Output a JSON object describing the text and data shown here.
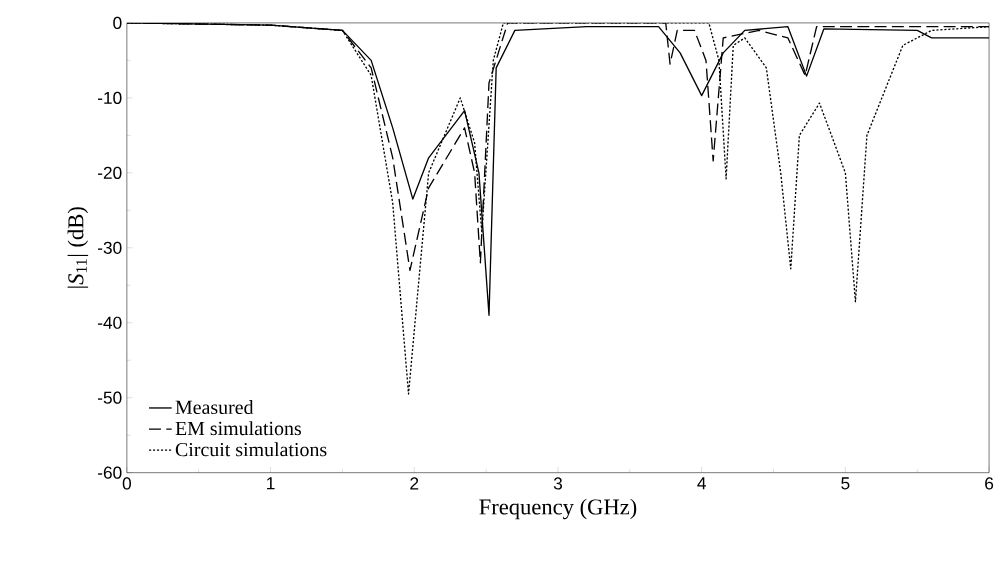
{
  "chart_data": {
    "type": "line",
    "xlabel": "Frequency (GHz)",
    "ylabel": "|*S*$_{11}$| (dB)",
    "xlim": [
      0,
      6
    ],
    "ylim": [
      -60,
      0
    ],
    "xticks": [
      0,
      1,
      2,
      3,
      4,
      5,
      6
    ],
    "yticks": [
      -60,
      -50,
      -40,
      -30,
      -20,
      -10,
      0
    ],
    "legend": "bottom left",
    "grid": false,
    "marker": "none",
    "series": [
      {
        "name": "Measured",
        "color": "#000000",
        "line_style": "solid",
        "x": [
          0,
          1,
          1.5,
          1.7,
          1.85,
          1.99,
          2.1,
          2.35,
          2.45,
          2.52,
          2.57,
          2.7,
          3.2,
          3.7,
          3.85,
          4.0,
          4.15,
          4.3,
          4.6,
          4.73,
          4.85,
          5.5,
          5.6,
          6
        ],
        "values": [
          0,
          -0.3,
          -1,
          -5,
          -14,
          -23.5,
          -18,
          -11.7,
          -20,
          -39,
          -6,
          -1,
          -0.5,
          -0.5,
          -4,
          -9.7,
          -4,
          -1,
          -0.5,
          -7.1,
          -0.8,
          -1,
          -2,
          -2
        ]
      },
      {
        "name": "EM simulations",
        "color": "#000000",
        "line_style": "dashed",
        "x": [
          0,
          1,
          1.5,
          1.7,
          1.85,
          1.97,
          2.1,
          2.35,
          2.42,
          2.46,
          2.52,
          2.65,
          3.75,
          3.78,
          3.83,
          3.95,
          4.03,
          4.08,
          4.15,
          4.4,
          4.6,
          4.72,
          4.8,
          6
        ],
        "values": [
          0,
          -0.3,
          -1,
          -6,
          -18,
          -33,
          -22,
          -14,
          -20,
          -32,
          -8,
          0,
          0,
          -5.5,
          -1,
          -1,
          -5,
          -18.4,
          -2,
          -1,
          -2,
          -7,
          -0.5,
          -0.5
        ]
      },
      {
        "name": "Circuit simulations",
        "color": "#000000",
        "line_style": "dotted",
        "x": [
          0,
          1,
          1.5,
          1.7,
          1.85,
          1.96,
          2.1,
          2.32,
          2.42,
          2.47,
          2.55,
          2.62,
          4.05,
          4.12,
          4.17,
          4.22,
          4.3,
          4.45,
          4.55,
          4.62,
          4.68,
          4.82,
          5.0,
          5.07,
          5.15,
          5.4,
          5.6,
          6
        ],
        "values": [
          0,
          -0.3,
          -1,
          -7,
          -24,
          -49.5,
          -20,
          -10,
          -16,
          -28,
          -5,
          0,
          0,
          -5,
          -20.8,
          -3,
          -2,
          -6,
          -20,
          -32.8,
          -15,
          -10.7,
          -20,
          -37.2,
          -15,
          -3,
          -1,
          -0.5
        ]
      }
    ]
  }
}
